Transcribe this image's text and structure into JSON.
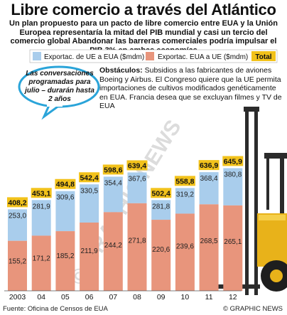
{
  "title": "Libre comercio a través del Atlántico",
  "subtitle": "Un plan propuesto  para un pacto de libre comercio entre EUA y la Unión Europea representaría la mitad del PIB mundial y casi un tercio del comercio global Abandonar las barreras comerciales podría impulsar el PIB 3% en ambas economías",
  "legend": {
    "series1": "Exportac. de UE a EUA ($mdm)",
    "series2": "Exportac. EUA a UE ($mdm)",
    "total": "Total"
  },
  "callout": "Las conversaciones programadas para julio – durarán hasta 2 años",
  "obstacles": {
    "label": "Obstáculos:",
    "text": "Subsidios a las fabricantes de aviones Boeing y Airbus. El Congreso quiere que la UE permita importaciones de cultivos modificados genéticamente en EUA. Francia desea que se excluyan filmes y TV de EUA"
  },
  "watermark": "© GRAPHIC NEWS",
  "footer": {
    "source": "Fuente: Oficina de Censos de EUA",
    "credit": "© GRAPHIC NEWS"
  },
  "colors": {
    "eu_to_us": "#a9cdec",
    "us_to_eu": "#e8957c",
    "total_bg": "#f2c21b",
    "bubble_border": "#2aa4d9"
  },
  "chart_data": {
    "type": "bar",
    "stacked": true,
    "categories": [
      "2003",
      "04",
      "05",
      "06",
      "07",
      "08",
      "09",
      "10",
      "11",
      "12"
    ],
    "series": [
      {
        "name": "Exportac. EUA a UE ($mdm)",
        "values": [
          155.2,
          171.2,
          185.2,
          211.9,
          244.2,
          271.8,
          220.6,
          239.6,
          268.5,
          265.1
        ]
      },
      {
        "name": "Exportac. de UE a EUA ($mdm)",
        "values": [
          253.0,
          281.9,
          309.6,
          330.5,
          354.4,
          367.6,
          281.8,
          319.2,
          368.4,
          380.8
        ]
      }
    ],
    "totals": [
      408.2,
      453.1,
      494.8,
      542.4,
      598.6,
      639.4,
      502.4,
      558.8,
      636.9,
      645.9
    ],
    "ylim": [
      0,
      660
    ]
  }
}
